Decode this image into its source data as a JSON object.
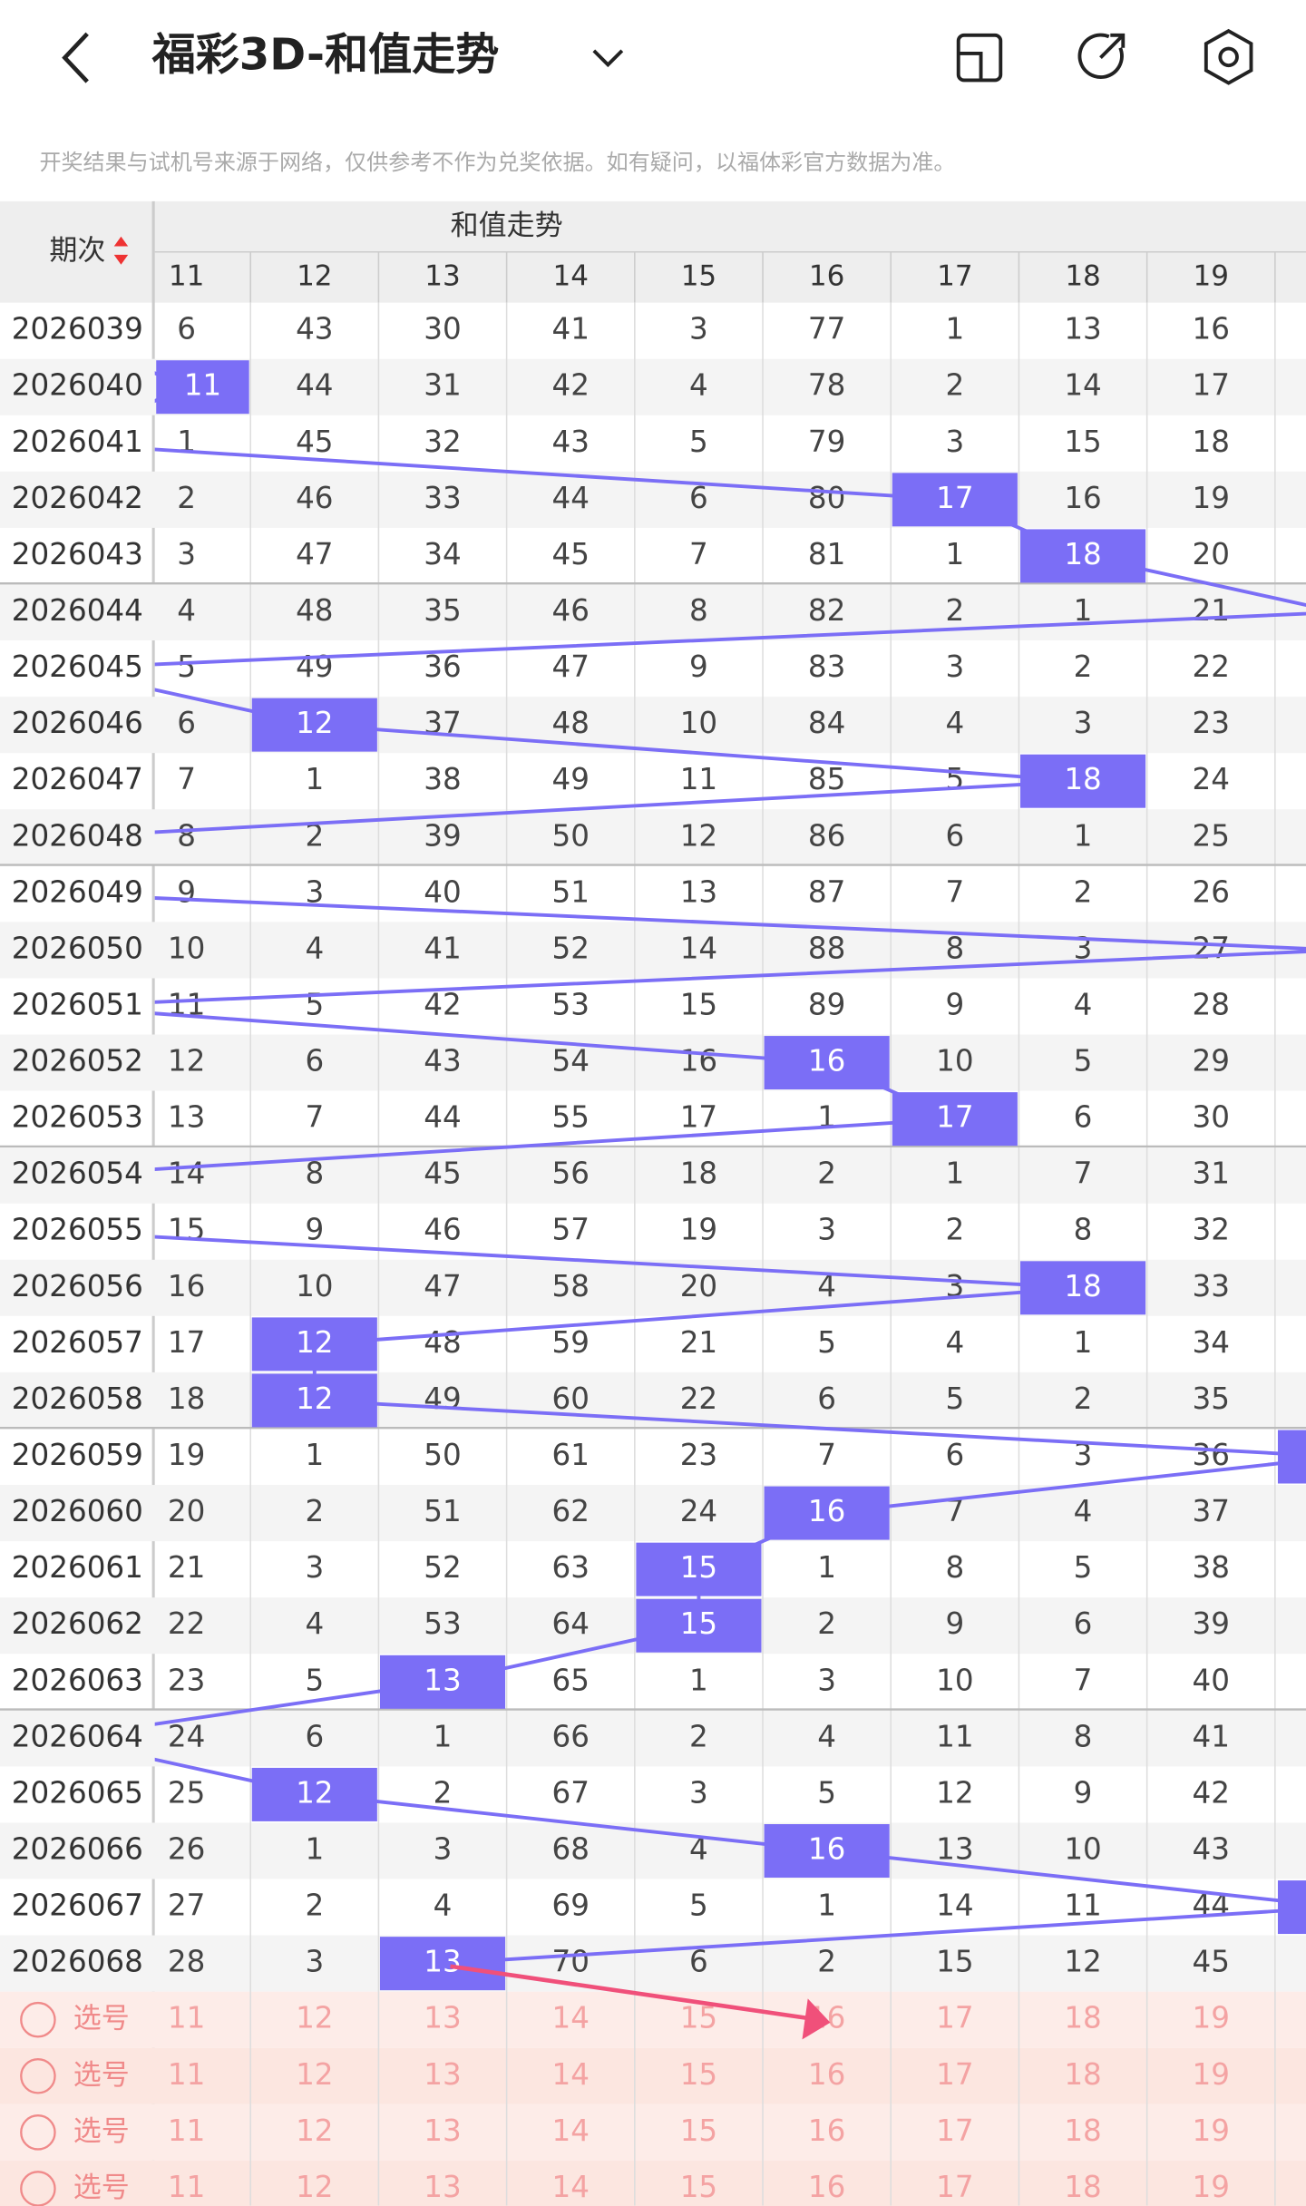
{
  "header": {
    "title": "福彩3D-和值走势"
  },
  "notice": "开奖结果与试机号来源于网络，仅供参考不作为兑奖依据。如有疑问，以福体彩官方数据为准。",
  "table": {
    "corner": "期次",
    "group": "和值走势",
    "columns": [
      "11",
      "12",
      "13",
      "14",
      "15",
      "16",
      "17",
      "18",
      "19"
    ],
    "rows": [
      {
        "period": "2026039",
        "cells": [
          "6",
          "43",
          "30",
          "41",
          "3",
          "77",
          "1",
          "13",
          "16"
        ],
        "hit": null
      },
      {
        "period": "2026040",
        "cells": [
          "11",
          "44",
          "31",
          "42",
          "4",
          "78",
          "2",
          "14",
          "17"
        ],
        "hit": 0
      },
      {
        "period": "2026041",
        "cells": [
          "1",
          "45",
          "32",
          "43",
          "5",
          "79",
          "3",
          "15",
          "18"
        ],
        "hit": null
      },
      {
        "period": "2026042",
        "cells": [
          "2",
          "46",
          "33",
          "44",
          "6",
          "80",
          "17",
          "16",
          "19"
        ],
        "hit": 6
      },
      {
        "period": "2026043",
        "cells": [
          "3",
          "47",
          "34",
          "45",
          "7",
          "81",
          "1",
          "18",
          "20"
        ],
        "hit": 7
      },
      {
        "period": "2026044",
        "cells": [
          "4",
          "48",
          "35",
          "46",
          "8",
          "82",
          "2",
          "1",
          "21"
        ],
        "hit": null
      },
      {
        "period": "2026045",
        "cells": [
          "5",
          "49",
          "36",
          "47",
          "9",
          "83",
          "3",
          "2",
          "22"
        ],
        "hit": null
      },
      {
        "period": "2026046",
        "cells": [
          "6",
          "12",
          "37",
          "48",
          "10",
          "84",
          "4",
          "3",
          "23"
        ],
        "hit": 1
      },
      {
        "period": "2026047",
        "cells": [
          "7",
          "1",
          "38",
          "49",
          "11",
          "85",
          "5",
          "18",
          "24"
        ],
        "hit": 7
      },
      {
        "period": "2026048",
        "cells": [
          "8",
          "2",
          "39",
          "50",
          "12",
          "86",
          "6",
          "1",
          "25"
        ],
        "hit": null
      },
      {
        "period": "2026049",
        "cells": [
          "9",
          "3",
          "40",
          "51",
          "13",
          "87",
          "7",
          "2",
          "26"
        ],
        "hit": null
      },
      {
        "period": "2026050",
        "cells": [
          "10",
          "4",
          "41",
          "52",
          "14",
          "88",
          "8",
          "3",
          "27"
        ],
        "hit": null
      },
      {
        "period": "2026051",
        "cells": [
          "11",
          "5",
          "42",
          "53",
          "15",
          "89",
          "9",
          "4",
          "28"
        ],
        "hit": null
      },
      {
        "period": "2026052",
        "cells": [
          "12",
          "6",
          "43",
          "54",
          "16",
          "16",
          "10",
          "5",
          "29"
        ],
        "hit": 5
      },
      {
        "period": "2026053",
        "cells": [
          "13",
          "7",
          "44",
          "55",
          "17",
          "1",
          "17",
          "6",
          "30"
        ],
        "hit": 6
      },
      {
        "period": "2026054",
        "cells": [
          "14",
          "8",
          "45",
          "56",
          "18",
          "2",
          "1",
          "7",
          "31"
        ],
        "hit": null
      },
      {
        "period": "2026055",
        "cells": [
          "15",
          "9",
          "46",
          "57",
          "19",
          "3",
          "2",
          "8",
          "32"
        ],
        "hit": null
      },
      {
        "period": "2026056",
        "cells": [
          "16",
          "10",
          "47",
          "58",
          "20",
          "4",
          "3",
          "18",
          "33"
        ],
        "hit": 7
      },
      {
        "period": "2026057",
        "cells": [
          "17",
          "12",
          "48",
          "59",
          "21",
          "5",
          "4",
          "1",
          "34"
        ],
        "hit": 1
      },
      {
        "period": "2026058",
        "cells": [
          "18",
          "12",
          "49",
          "60",
          "22",
          "6",
          "5",
          "2",
          "35"
        ],
        "hit": 1
      },
      {
        "period": "2026059",
        "cells": [
          "19",
          "1",
          "50",
          "61",
          "23",
          "7",
          "6",
          "3",
          "36"
        ],
        "hit": null
      },
      {
        "period": "2026060",
        "cells": [
          "20",
          "2",
          "51",
          "62",
          "24",
          "16",
          "7",
          "4",
          "37"
        ],
        "hit": 5
      },
      {
        "period": "2026061",
        "cells": [
          "21",
          "3",
          "52",
          "63",
          "15",
          "1",
          "8",
          "5",
          "38"
        ],
        "hit": 4
      },
      {
        "period": "2026062",
        "cells": [
          "22",
          "4",
          "53",
          "64",
          "15",
          "2",
          "9",
          "6",
          "39"
        ],
        "hit": 4
      },
      {
        "period": "2026063",
        "cells": [
          "23",
          "5",
          "13",
          "65",
          "1",
          "3",
          "10",
          "7",
          "40"
        ],
        "hit": 2
      },
      {
        "period": "2026064",
        "cells": [
          "24",
          "6",
          "1",
          "66",
          "2",
          "4",
          "11",
          "8",
          "41"
        ],
        "hit": null
      },
      {
        "period": "2026065",
        "cells": [
          "25",
          "12",
          "2",
          "67",
          "3",
          "5",
          "12",
          "9",
          "42"
        ],
        "hit": 1
      },
      {
        "period": "2026066",
        "cells": [
          "26",
          "1",
          "3",
          "68",
          "4",
          "16",
          "13",
          "10",
          "43"
        ],
        "hit": 5
      },
      {
        "period": "2026067",
        "cells": [
          "27",
          "2",
          "4",
          "69",
          "5",
          "1",
          "14",
          "11",
          "44"
        ],
        "hit": null
      },
      {
        "period": "2026068",
        "cells": [
          "28",
          "3",
          "13",
          "70",
          "6",
          "2",
          "15",
          "12",
          "45"
        ],
        "hit": 2
      }
    ]
  },
  "pick_rows": [
    "选号",
    "选号",
    "选号",
    "选号"
  ]
}
